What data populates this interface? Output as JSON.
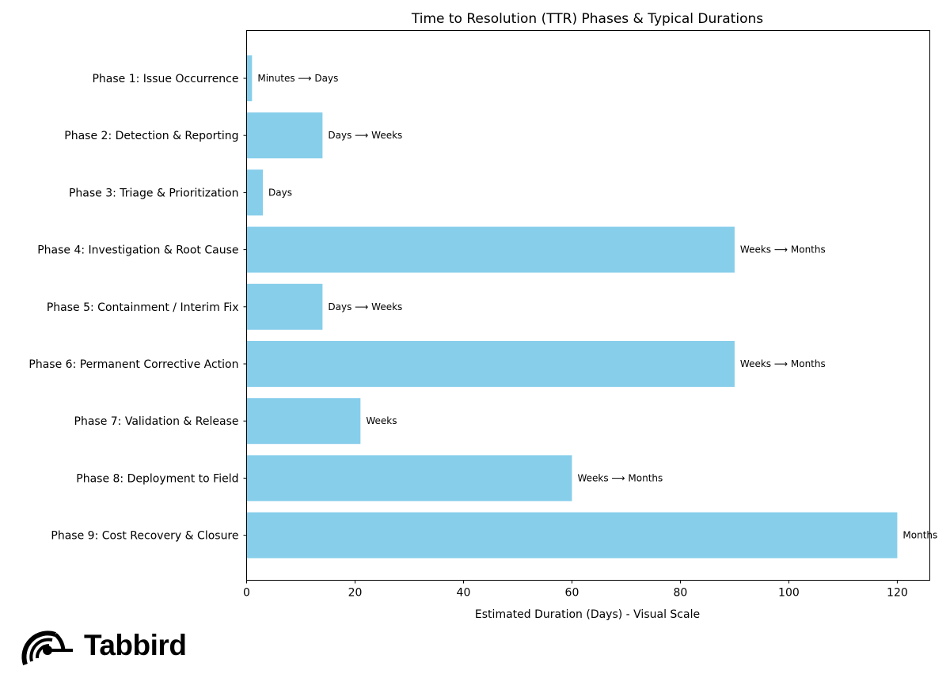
{
  "chart_data": {
    "type": "bar",
    "orientation": "horizontal",
    "title": "Time to Resolution (TTR) Phases & Typical Durations",
    "xlabel": "Estimated Duration (Days) - Visual Scale",
    "ylabel": "",
    "xlim": [
      0,
      126
    ],
    "xticks": [
      0,
      20,
      40,
      60,
      80,
      100,
      120
    ],
    "grid": false,
    "bar_color": "#87CEEB",
    "categories": [
      "Phase 1: Issue Occurrence",
      "Phase 2: Detection & Reporting",
      "Phase 3: Triage & Prioritization",
      "Phase 4: Investigation & Root Cause",
      "Phase 5: Containment / Interim Fix",
      "Phase 6: Permanent Corrective Action",
      "Phase 7: Validation & Release",
      "Phase 8: Deployment to Field",
      "Phase 9: Cost Recovery & Closure"
    ],
    "values": [
      1,
      14,
      3,
      90,
      14,
      90,
      21,
      60,
      120
    ],
    "annotations": [
      "Minutes ⟶ Days",
      "Days ⟶ Weeks",
      "Days",
      "Weeks ⟶ Months",
      "Days ⟶ Weeks",
      "Weeks ⟶ Months",
      "Weeks",
      "Weeks ⟶ Months",
      "Months"
    ]
  },
  "logo": {
    "text": "Tabbird"
  }
}
